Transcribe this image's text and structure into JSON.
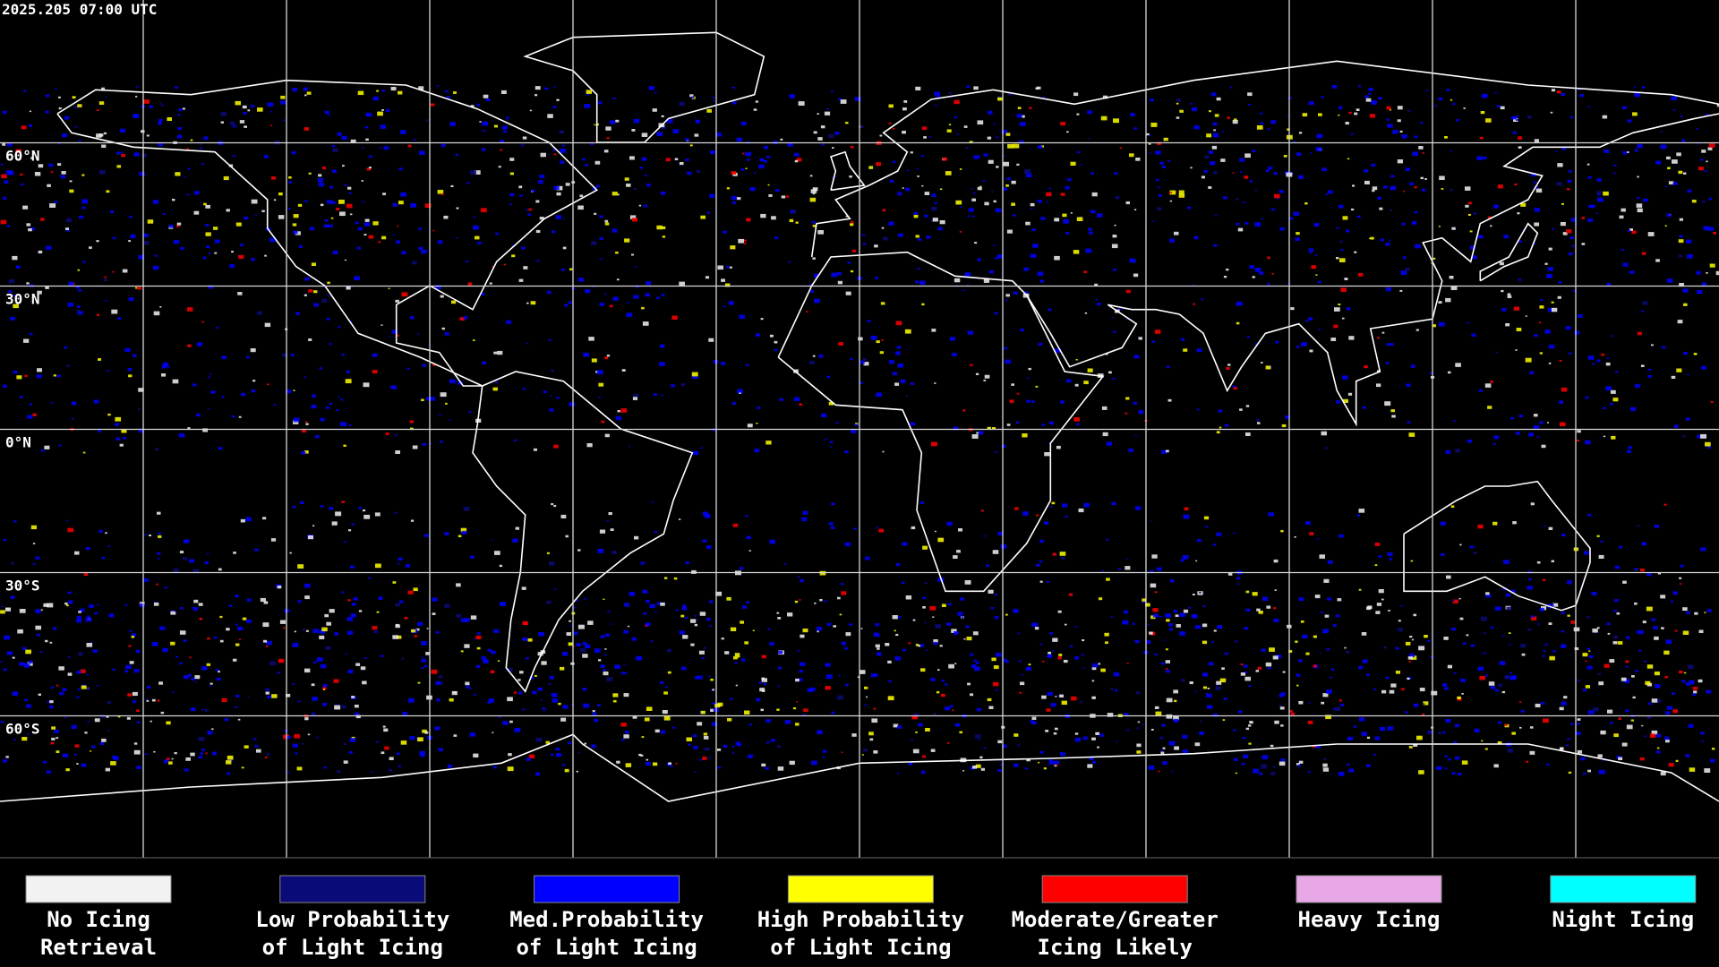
{
  "header": {
    "timestamp": "2025.205 07:00 UTC"
  },
  "map": {
    "latitude_labels": [
      "60°N",
      "30°N",
      "0°N",
      "30°S",
      "60°S"
    ]
  },
  "legend": [
    {
      "line1": "No Icing",
      "line2": "Retrieval",
      "color": "#f2f2f2"
    },
    {
      "line1": "Low Probability",
      "line2": "of Light Icing",
      "color": "#0a0a78"
    },
    {
      "line1": "Med.Probability",
      "line2": "of Light Icing",
      "color": "#0000ff"
    },
    {
      "line1": "High Probability",
      "line2": "of Light Icing",
      "color": "#ffff00"
    },
    {
      "line1": "Moderate/Greater",
      "line2": "Icing Likely",
      "color": "#ff0000"
    },
    {
      "line1": "Heavy Icing",
      "line2": "",
      "color": "#e8a8e8"
    },
    {
      "line1": "Night Icing",
      "line2": "",
      "color": "#00ffff"
    }
  ]
}
